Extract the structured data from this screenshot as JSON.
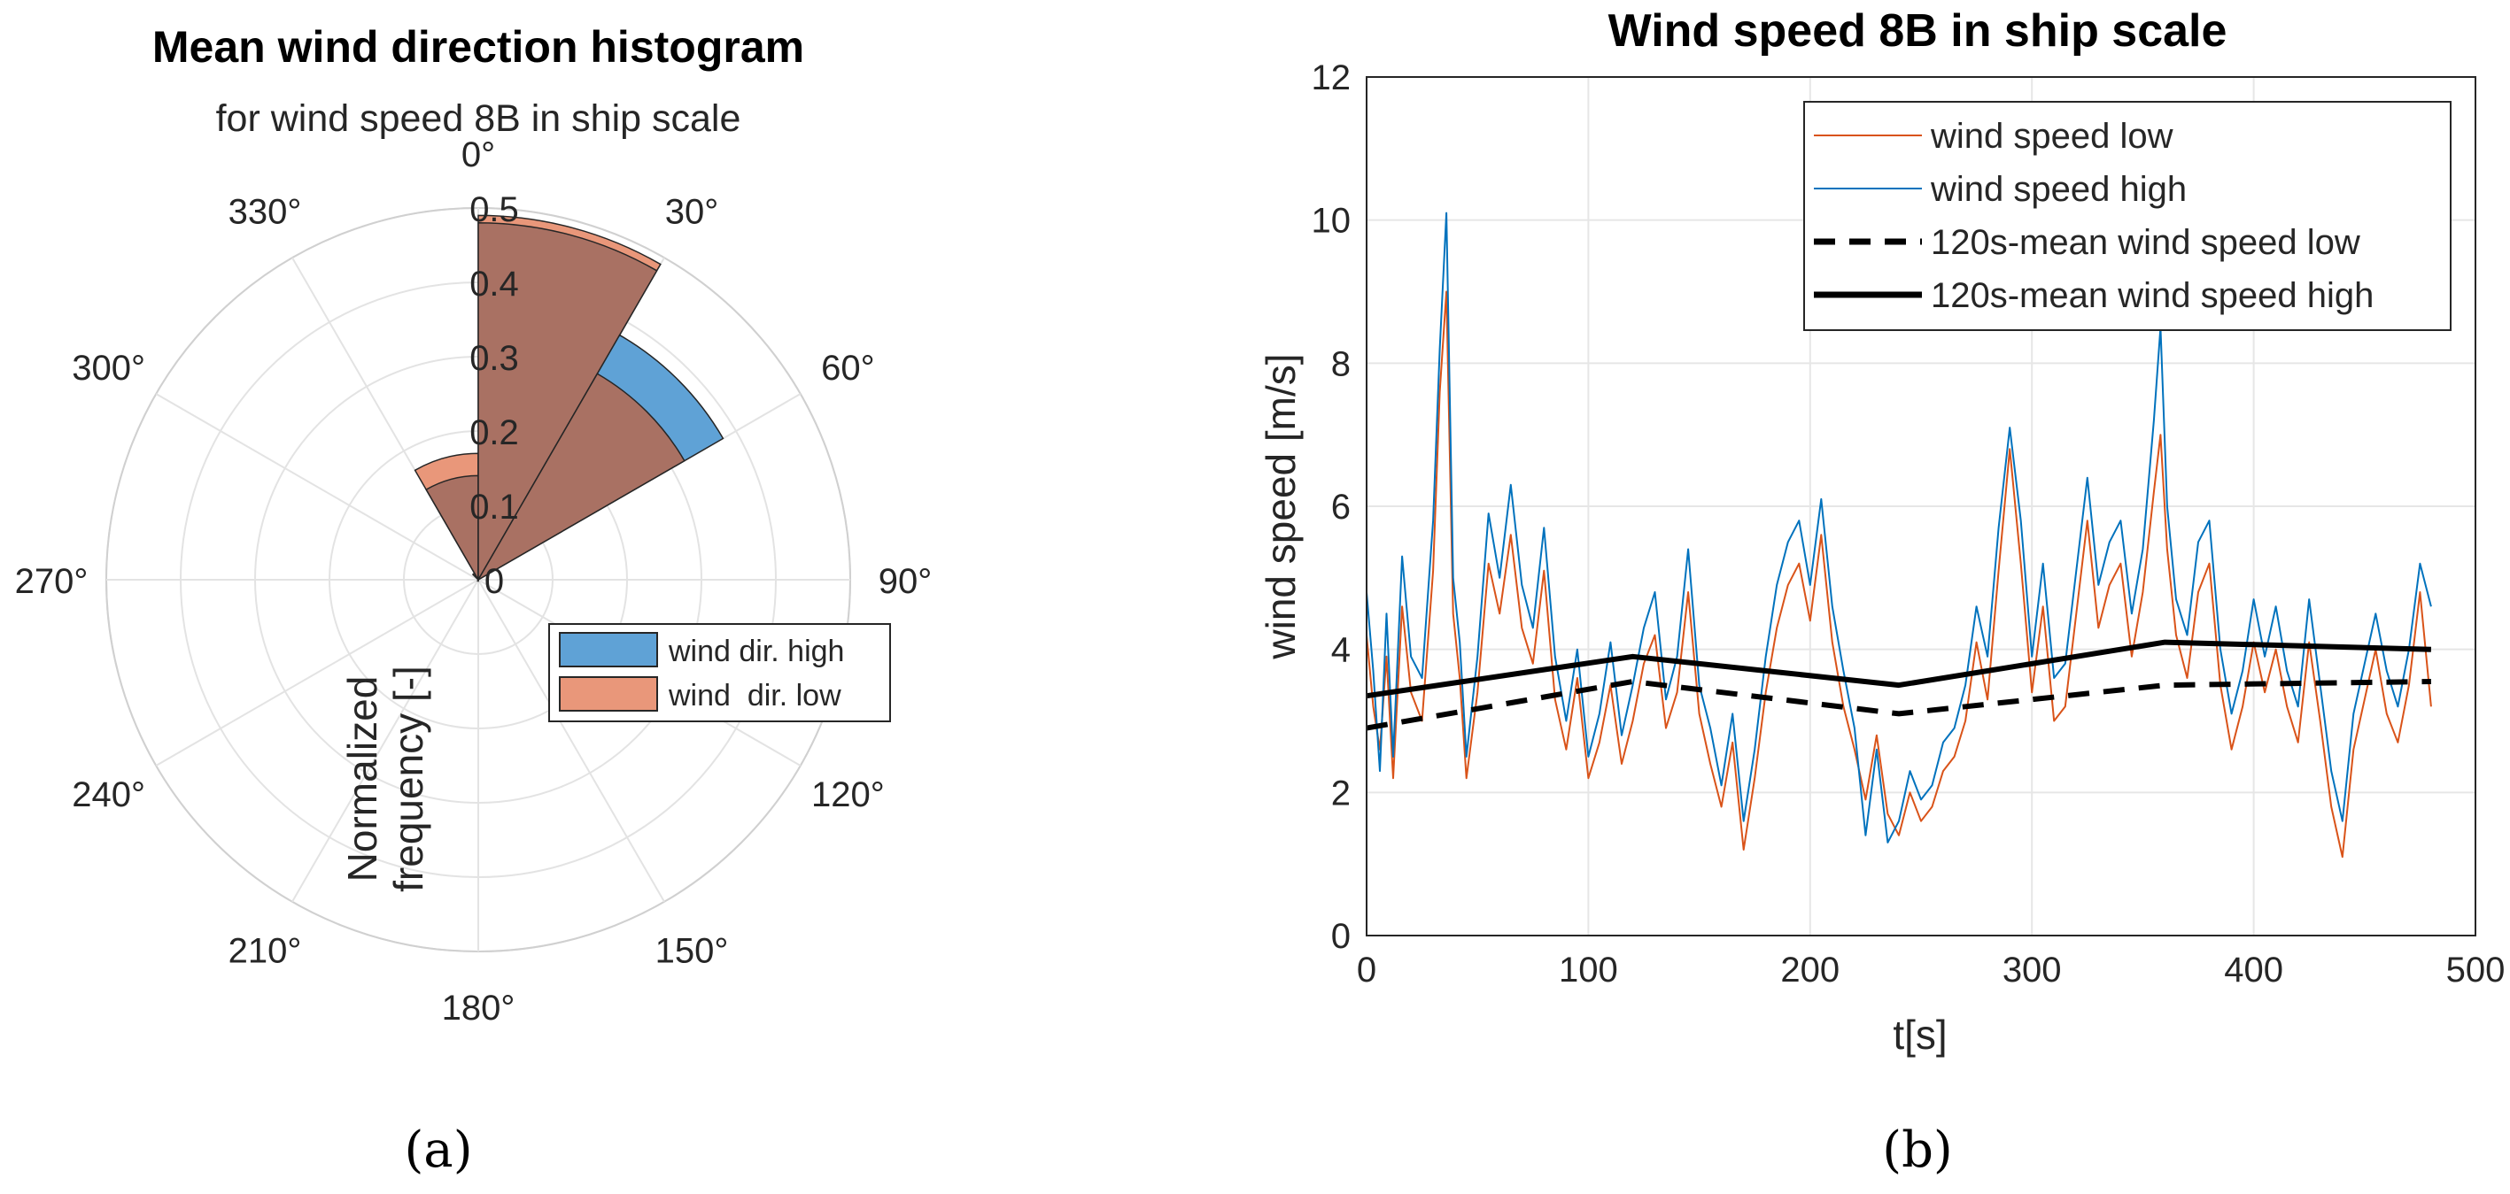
{
  "chart_data": [
    {
      "type": "polar-histogram",
      "title": "Mean wind direction histogram",
      "subtitle": "for wind speed 8B in ship scale",
      "caption": "(a)",
      "radial_label": "Normalized frequency [-]",
      "radial_label_lines": [
        "Normalized",
        "frequency [-]"
      ],
      "rlim": [
        0,
        0.5
      ],
      "radial_ticks": [
        0,
        0.1,
        0.2,
        0.3,
        0.4,
        0.5
      ],
      "radial_tick_labels": [
        "0",
        "0.1",
        "0.2",
        "0.3",
        "0.4",
        "0.5"
      ],
      "angle_ticks": [
        0,
        30,
        60,
        90,
        120,
        150,
        180,
        210,
        240,
        270,
        300,
        330
      ],
      "angle_tick_labels": [
        "0°",
        "30°",
        "60°",
        "90°",
        "120°",
        "150°",
        "180°",
        "210°",
        "240°",
        "270°",
        "300°",
        "330°"
      ],
      "bin_width_deg": 30,
      "bin_edges_deg": [
        -45,
        -30,
        0,
        30,
        60
      ],
      "series": [
        {
          "name": "wind dir. high",
          "color": "#5fa2d6",
          "values": [
            0.01,
            0.14,
            0.48,
            0.38
          ]
        },
        {
          "name": "wind  dir. low",
          "color": "#e9977a",
          "values": [
            0.01,
            0.17,
            0.49,
            0.32
          ]
        }
      ],
      "overlap_color": "#a97163",
      "legend": {
        "position": "lower-right",
        "entries": [
          "wind dir. high",
          "wind  dir. low"
        ]
      }
    },
    {
      "type": "line",
      "title": "Wind speed 8B in ship scale",
      "caption": "(b)",
      "xlabel": "t[s]",
      "ylabel": "wind speed [m/s]",
      "xlim": [
        0,
        500
      ],
      "ylim": [
        0,
        12
      ],
      "xticks": [
        0,
        100,
        200,
        300,
        400,
        500
      ],
      "yticks": [
        0,
        2,
        4,
        6,
        8,
        10,
        12
      ],
      "grid": true,
      "legend": {
        "position": "top-right",
        "entries": [
          "wind speed low",
          "wind speed high",
          "120s-mean wind speed low",
          "120s-mean wind speed high"
        ]
      },
      "series": [
        {
          "name": "wind speed low",
          "color": "#d95319",
          "style": "thin",
          "x": [
            0,
            3,
            6,
            9,
            12,
            16,
            20,
            25,
            30,
            33,
            36,
            39,
            42,
            45,
            50,
            55,
            60,
            65,
            70,
            75,
            80,
            85,
            90,
            95,
            100,
            105,
            110,
            115,
            120,
            125,
            130,
            135,
            140,
            145,
            150,
            155,
            160,
            165,
            170,
            175,
            180,
            185,
            190,
            195,
            200,
            205,
            210,
            215,
            220,
            225,
            230,
            235,
            240,
            245,
            250,
            255,
            260,
            265,
            270,
            275,
            280,
            285,
            290,
            295,
            300,
            305,
            310,
            315,
            320,
            325,
            330,
            335,
            340,
            345,
            350,
            355,
            358,
            361,
            365,
            370,
            375,
            380,
            385,
            390,
            395,
            400,
            405,
            410,
            415,
            420,
            425,
            430,
            435,
            440,
            445,
            450,
            455,
            460,
            465,
            470,
            475,
            480
          ],
          "y": [
            4.2,
            3.2,
            2.6,
            3.9,
            2.2,
            4.6,
            3.4,
            3.0,
            5.1,
            7.6,
            9.0,
            4.5,
            3.6,
            2.2,
            3.4,
            5.2,
            4.5,
            5.6,
            4.3,
            3.8,
            5.1,
            3.3,
            2.6,
            3.6,
            2.2,
            2.7,
            3.5,
            2.4,
            3.0,
            3.8,
            4.2,
            2.9,
            3.4,
            4.8,
            3.1,
            2.4,
            1.8,
            2.7,
            1.2,
            2.2,
            3.4,
            4.3,
            4.9,
            5.2,
            4.4,
            5.6,
            4.1,
            3.2,
            2.6,
            1.9,
            2.8,
            1.7,
            1.4,
            2.0,
            1.6,
            1.8,
            2.3,
            2.5,
            3.0,
            4.1,
            3.3,
            5.1,
            6.8,
            5.2,
            3.4,
            4.6,
            3.0,
            3.2,
            4.5,
            5.8,
            4.3,
            4.9,
            5.2,
            3.9,
            4.8,
            6.2,
            7.0,
            5.4,
            4.2,
            3.6,
            4.8,
            5.2,
            3.5,
            2.6,
            3.2,
            4.1,
            3.4,
            4.0,
            3.2,
            2.7,
            4.1,
            3.0,
            1.8,
            1.1,
            2.6,
            3.3,
            4.0,
            3.1,
            2.7,
            3.5,
            4.8,
            3.2
          ]
        },
        {
          "name": "wind speed high",
          "color": "#0072bd",
          "style": "thin",
          "x": [
            0,
            3,
            6,
            9,
            12,
            16,
            20,
            25,
            30,
            33,
            36,
            39,
            42,
            45,
            50,
            55,
            60,
            65,
            70,
            75,
            80,
            85,
            90,
            95,
            100,
            105,
            110,
            115,
            120,
            125,
            130,
            135,
            140,
            145,
            150,
            155,
            160,
            165,
            170,
            175,
            180,
            185,
            190,
            195,
            200,
            205,
            210,
            215,
            220,
            225,
            230,
            235,
            240,
            245,
            250,
            255,
            260,
            265,
            270,
            275,
            280,
            285,
            290,
            295,
            300,
            305,
            310,
            315,
            320,
            325,
            330,
            335,
            340,
            345,
            350,
            355,
            358,
            361,
            365,
            370,
            375,
            380,
            385,
            390,
            395,
            400,
            405,
            410,
            415,
            420,
            425,
            430,
            435,
            440,
            445,
            450,
            455,
            460,
            465,
            470,
            475,
            480
          ],
          "y": [
            4.8,
            3.7,
            2.3,
            4.5,
            2.5,
            5.3,
            3.9,
            3.6,
            5.8,
            8.2,
            10.1,
            5.0,
            4.1,
            2.5,
            3.9,
            5.9,
            5.0,
            6.3,
            4.9,
            4.3,
            5.7,
            3.9,
            3.0,
            4.0,
            2.5,
            3.1,
            4.1,
            2.8,
            3.5,
            4.3,
            4.8,
            3.3,
            3.9,
            5.4,
            3.5,
            2.9,
            2.1,
            3.1,
            1.6,
            2.6,
            3.9,
            4.9,
            5.5,
            5.8,
            4.9,
            6.1,
            4.6,
            3.7,
            2.9,
            1.4,
            2.6,
            1.3,
            1.6,
            2.3,
            1.9,
            2.1,
            2.7,
            2.9,
            3.5,
            4.6,
            3.9,
            5.7,
            7.1,
            5.8,
            3.9,
            5.2,
            3.6,
            3.8,
            5.1,
            6.4,
            4.9,
            5.5,
            5.8,
            4.5,
            5.4,
            7.2,
            8.5,
            6.0,
            4.7,
            4.2,
            5.5,
            5.8,
            4.0,
            3.1,
            3.7,
            4.7,
            3.9,
            4.6,
            3.7,
            3.2,
            4.7,
            3.5,
            2.3,
            1.6,
            3.1,
            3.8,
            4.5,
            3.7,
            3.2,
            4.0,
            5.2,
            4.6
          ]
        },
        {
          "name": "120s-mean wind speed low",
          "color": "#000000",
          "style": "dashed",
          "x": [
            0,
            120,
            240,
            360,
            480
          ],
          "y": [
            2.9,
            3.55,
            3.1,
            3.5,
            3.55
          ]
        },
        {
          "name": "120s-mean wind speed high",
          "color": "#000000",
          "style": "solid-thick",
          "x": [
            0,
            120,
            240,
            360,
            480
          ],
          "y": [
            3.35,
            3.9,
            3.5,
            4.1,
            4.0
          ]
        }
      ]
    }
  ]
}
